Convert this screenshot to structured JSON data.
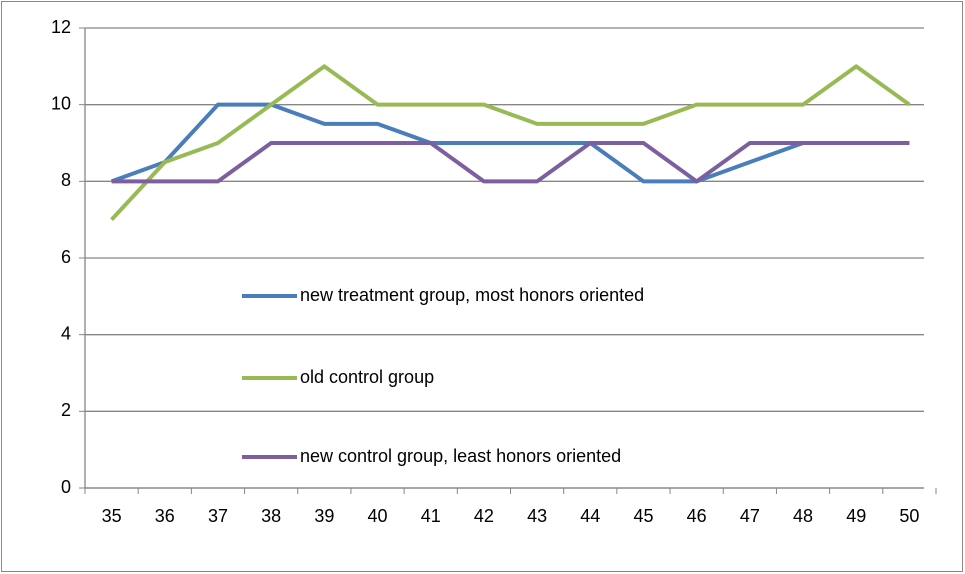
{
  "chart_data": {
    "type": "line",
    "x": [
      35,
      36,
      37,
      38,
      39,
      40,
      41,
      42,
      43,
      44,
      45,
      46,
      47,
      48,
      49,
      50
    ],
    "xlim": [
      34.5,
      50.5
    ],
    "xticks": [
      35,
      36,
      37,
      38,
      39,
      40,
      41,
      42,
      43,
      44,
      45,
      46,
      47,
      48,
      49,
      50
    ],
    "ylim": [
      0,
      12
    ],
    "yticks": [
      0,
      2,
      4,
      6,
      8,
      10,
      12
    ],
    "grid": true,
    "series": [
      {
        "name": "new treatment  group, most honors oriented",
        "color": "#4a7ebb",
        "values": [
          8,
          8.5,
          10,
          10,
          9.5,
          9.5,
          9,
          9,
          9,
          9,
          8,
          8,
          8.5,
          9,
          9,
          9
        ]
      },
      {
        "name": "old control group",
        "color": "#98b954",
        "values": [
          7,
          8.5,
          9,
          10,
          11,
          10,
          10,
          10,
          9.5,
          9.5,
          9.5,
          10,
          10,
          10,
          11,
          10
        ]
      },
      {
        "name": "new control group, least honors oriented",
        "color": "#7d5fa0",
        "values": [
          8,
          8,
          8,
          9,
          9,
          9,
          9,
          8,
          8,
          9,
          9,
          8,
          9,
          9,
          9,
          9
        ]
      }
    ]
  }
}
